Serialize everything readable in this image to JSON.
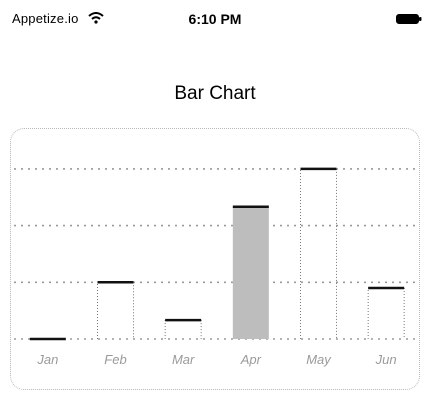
{
  "status_bar": {
    "carrier": "Appetize.io",
    "time": "6:10 PM",
    "wifi_icon": "wifi-icon",
    "battery_icon": "battery-icon"
  },
  "screen": {
    "title": "Bar Chart"
  },
  "colors": {
    "bar_fill": "#bdbdbd",
    "bar_cap": "#111111",
    "grid": "#9a9a9a",
    "tick": "#9a9a9a"
  },
  "chart_data": {
    "type": "bar",
    "categories": [
      "Jan",
      "Feb",
      "Mar",
      "Apr",
      "May",
      "Jun"
    ],
    "values": [
      0,
      30,
      10,
      70,
      90,
      27
    ],
    "title": "Bar Chart",
    "xlabel": "",
    "ylabel": "",
    "ylim": [
      0,
      100
    ],
    "grid": true,
    "legend": "none",
    "highlighted_category": "Apr"
  }
}
